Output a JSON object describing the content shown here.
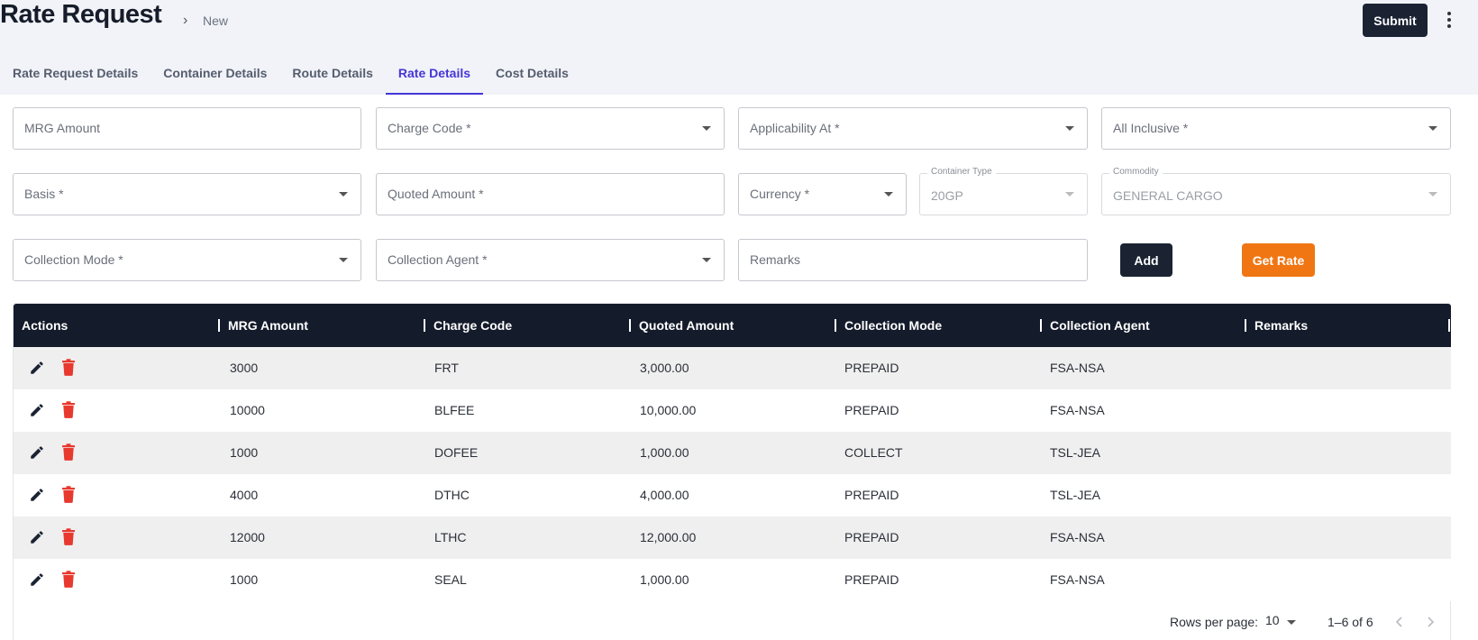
{
  "header": {
    "title": "Rate Request",
    "breadcrumb_chevron": "›",
    "breadcrumb": "New",
    "submit_label": "Submit",
    "more_icon": "vertical-dots-icon"
  },
  "tabs": [
    {
      "label": "Rate Request Details",
      "active": false
    },
    {
      "label": "Container Details",
      "active": false
    },
    {
      "label": "Route Details",
      "active": false
    },
    {
      "label": "Rate Details",
      "active": true
    },
    {
      "label": "Cost Details",
      "active": false
    }
  ],
  "form": {
    "mrg_amount": "MRG Amount",
    "charge_code": "Charge Code *",
    "applicability_at": "Applicability At *",
    "all_inclusive": "All Inclusive *",
    "basis": "Basis *",
    "quoted_amount": "Quoted Amount *",
    "currency": "Currency *",
    "container_type": {
      "label": "Container Type",
      "value": "20GP"
    },
    "commodity": {
      "label": "Commodity",
      "value": "GENERAL CARGO"
    },
    "collection_mode": "Collection Mode *",
    "collection_agent": "Collection Agent *",
    "remarks": "Remarks",
    "add_label": "Add",
    "get_rate_label": "Get Rate"
  },
  "table": {
    "columns": [
      "Actions",
      "MRG Amount",
      "Charge Code",
      "Quoted Amount",
      "Collection Mode",
      "Collection Agent",
      "Remarks"
    ],
    "rows": [
      {
        "mrg": "3000",
        "code": "FRT",
        "quoted": "3,000.00",
        "mode": "PREPAID",
        "agent": "FSA-NSA",
        "remarks": ""
      },
      {
        "mrg": "10000",
        "code": "BLFEE",
        "quoted": "10,000.00",
        "mode": "PREPAID",
        "agent": "FSA-NSA",
        "remarks": ""
      },
      {
        "mrg": "1000",
        "code": "DOFEE",
        "quoted": "1,000.00",
        "mode": "COLLECT",
        "agent": "TSL-JEA",
        "remarks": ""
      },
      {
        "mrg": "4000",
        "code": "DTHC",
        "quoted": "4,000.00",
        "mode": "PREPAID",
        "agent": "TSL-JEA",
        "remarks": ""
      },
      {
        "mrg": "12000",
        "code": "LTHC",
        "quoted": "12,000.00",
        "mode": "PREPAID",
        "agent": "FSA-NSA",
        "remarks": ""
      },
      {
        "mrg": "1000",
        "code": "SEAL",
        "quoted": "1,000.00",
        "mode": "PREPAID",
        "agent": "FSA-NSA",
        "remarks": ""
      }
    ]
  },
  "pagination": {
    "rows_per_page_label": "Rows per page:",
    "rows_per_page": "10",
    "range": "1–6 of 6"
  },
  "colors": {
    "primary_dark": "#1b2333",
    "accent_tab": "#4535d8",
    "get_rate": "#f07614",
    "delete_icon": "#e8392e"
  }
}
